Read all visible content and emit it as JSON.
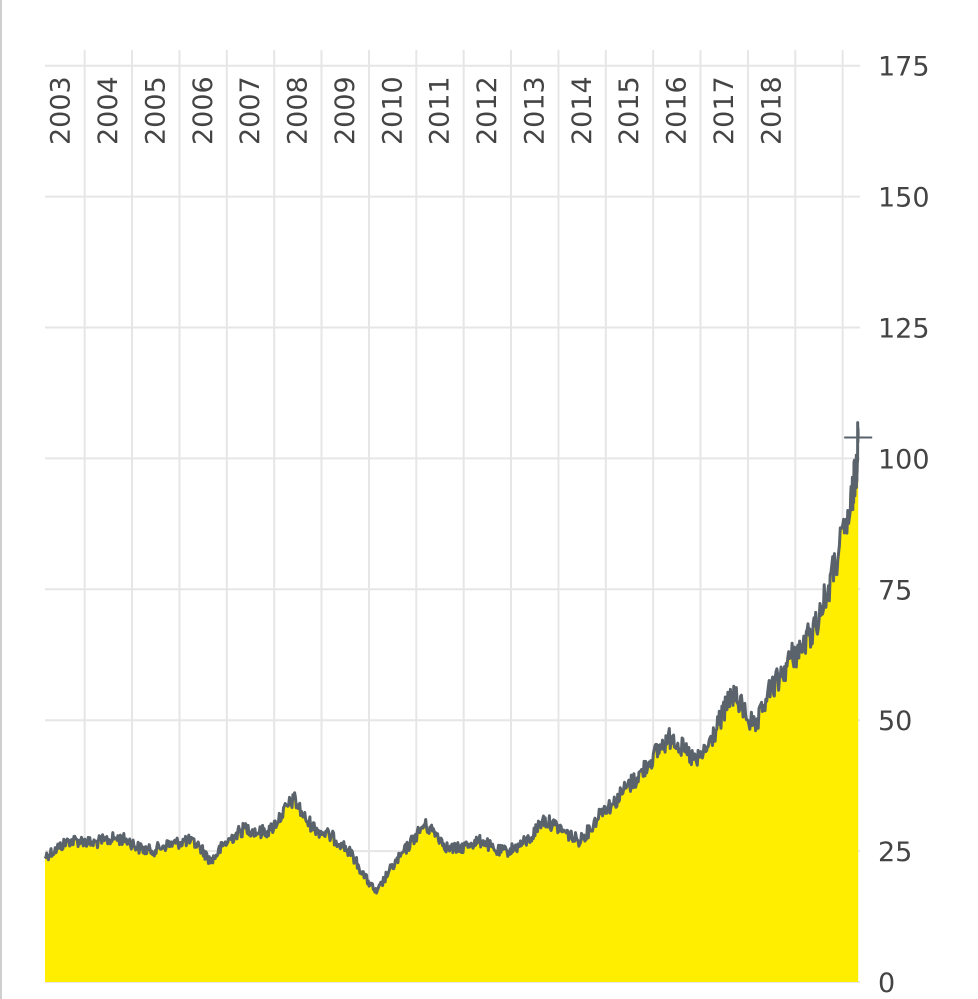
{
  "chart_data": {
    "type": "area",
    "title": "",
    "xlabel": "",
    "ylabel": "",
    "x_axis": {
      "position": "top",
      "tick_labels": [
        "2003",
        "2004",
        "2005",
        "2006",
        "2007",
        "2008",
        "2009",
        "2010",
        "2011",
        "2012",
        "2013",
        "2014",
        "2015",
        "2016",
        "2017",
        "2018"
      ]
    },
    "y_axis": {
      "position": "right",
      "ticks": [
        0,
        25,
        50,
        75,
        100,
        125,
        150,
        175
      ],
      "tick_labels": [
        "0",
        "25",
        "50",
        "75",
        "100",
        "125",
        "150",
        "175"
      ]
    },
    "xlim": [
      "2002-03-01",
      "2019-05-15"
    ],
    "ylim": [
      0,
      178
    ],
    "grid": true,
    "legend": "none",
    "colors": {
      "fill": "#ffee00",
      "line": "#5a636b",
      "grid": "#e6e6e6",
      "text": "#444444"
    },
    "series": [
      {
        "x": [
          "2002-03-01",
          "2002-06-01",
          "2002-09-01",
          "2002-12-01",
          "2003-03-01",
          "2003-06-01",
          "2003-09-01",
          "2003-12-01",
          "2004-03-01",
          "2004-06-01",
          "2004-09-01",
          "2004-12-01",
          "2005-03-01",
          "2005-06-01",
          "2005-09-01",
          "2005-12-01",
          "2006-03-01",
          "2006-06-01",
          "2006-09-01",
          "2006-12-01",
          "2007-03-01",
          "2007-06-01",
          "2007-09-01",
          "2007-12-01",
          "2008-03-01",
          "2008-06-01",
          "2008-09-01",
          "2008-12-01",
          "2009-03-01",
          "2009-06-01",
          "2009-09-01",
          "2009-12-01",
          "2010-03-01",
          "2010-06-01",
          "2010-09-01",
          "2010-12-01",
          "2011-03-01",
          "2011-06-01",
          "2011-09-01",
          "2011-12-01",
          "2012-03-01",
          "2012-06-01",
          "2012-09-01",
          "2012-12-01",
          "2013-03-01",
          "2013-06-01",
          "2013-09-01",
          "2013-12-01",
          "2014-03-01",
          "2014-06-01",
          "2014-09-01",
          "2014-12-01",
          "2015-03-01",
          "2015-06-01",
          "2015-09-01",
          "2015-12-01",
          "2016-03-01",
          "2016-06-01",
          "2016-09-01",
          "2016-12-01",
          "2017-03-01",
          "2017-06-01",
          "2017-09-01",
          "2017-12-01",
          "2018-03-01",
          "2018-06-01",
          "2018-09-01",
          "2018-12-01",
          "2019-03-01",
          "2019-04-15",
          "2019-05-01"
        ],
        "values": [
          24,
          25.5,
          27,
          27,
          26.5,
          27,
          27.5,
          27,
          25.5,
          25,
          26,
          26.5,
          27,
          26,
          23,
          26,
          28,
          29.5,
          28.5,
          29,
          32,
          35,
          31,
          29,
          28,
          26.5,
          24,
          20,
          17,
          21,
          24,
          27,
          30,
          28.5,
          25.5,
          25.5,
          26.5,
          27,
          25,
          25,
          26,
          27.5,
          31,
          30,
          28.5,
          27,
          29,
          33,
          34,
          37,
          39,
          42,
          45,
          47,
          44,
          42,
          45,
          50,
          55,
          52,
          48,
          55,
          58,
          62,
          64,
          68,
          74,
          82,
          90,
          98,
          104
        ]
      }
    ]
  }
}
